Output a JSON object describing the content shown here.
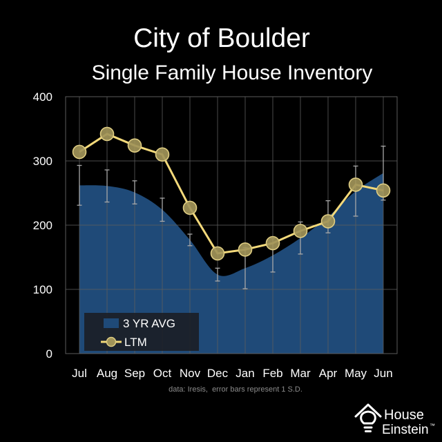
{
  "colors": {
    "background": "#000000",
    "text": "#ffffff",
    "note_text": "#8c8c8c",
    "area_fill": "#1f4a78",
    "ltm_line": "#f3d97a",
    "marker_fill": "#a19459",
    "marker_stroke": "#dfcd82",
    "error_bar": "#a8a8a8",
    "grid": "#5c5c5c",
    "legend_bg": "#1b1e25"
  },
  "chart_data": {
    "type": "line",
    "title": "City of Boulder",
    "subtitle": "Single Family House Inventory",
    "note": "data: Iresis,  error bars represent 1 S.D.",
    "categories": [
      "Jul",
      "Aug",
      "Sep",
      "Oct",
      "Nov",
      "Dec",
      "Jan",
      "Feb",
      "Mar",
      "Apr",
      "May",
      "Jun"
    ],
    "ylim": [
      0,
      400
    ],
    "yticks": [
      0,
      100,
      200,
      300,
      400
    ],
    "grid": true,
    "legend": "bottom-left",
    "series": [
      {
        "name": "3 YR AVG",
        "type": "area",
        "values": [
          262,
          261,
          251,
          224,
          177,
          123,
          133,
          153,
          180,
          213,
          253,
          281
        ],
        "error_sd": [
          31,
          25,
          18,
          18,
          9,
          10,
          32,
          26,
          25,
          25,
          39,
          42
        ]
      },
      {
        "name": "LTM",
        "type": "line",
        "marker": "circle",
        "values": [
          314,
          342,
          324,
          310,
          227,
          156,
          162,
          172,
          191,
          206,
          263,
          254
        ]
      }
    ]
  },
  "logo": {
    "icon": "house-lightbulb-icon",
    "line1": "House",
    "line2": "Einstein",
    "trademark": "™"
  }
}
